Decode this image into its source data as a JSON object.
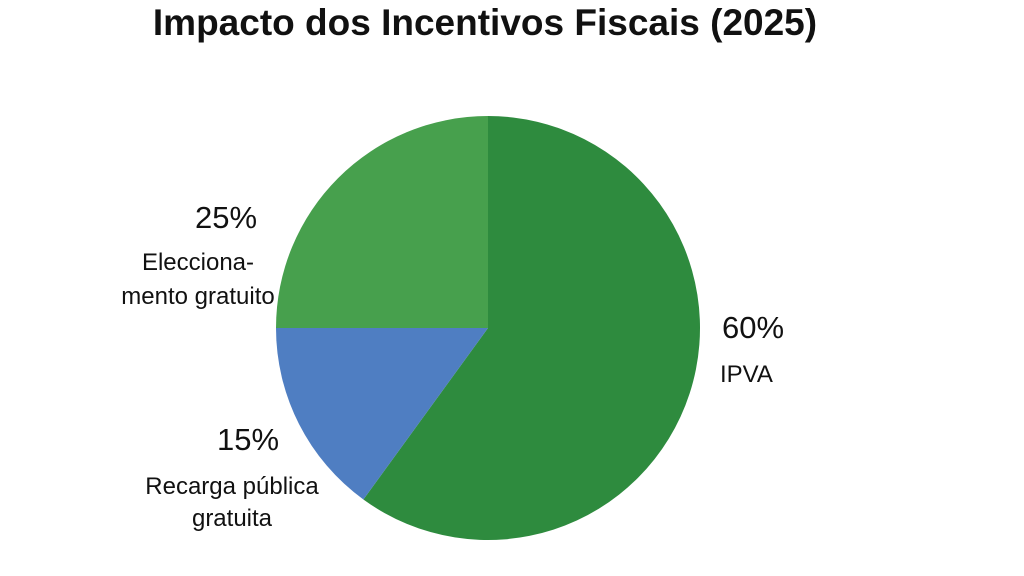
{
  "chart_data": {
    "type": "pie",
    "title": "Impacto dos Incentivos Fiscais (2025)",
    "slices": [
      {
        "value": 60,
        "percent_label": "60%",
        "name_lines": [
          "IPVA"
        ],
        "color": "#2e8b3e"
      },
      {
        "value": 15,
        "percent_label": "15%",
        "name_lines": [
          "Recarga pública",
          "gratuita"
        ],
        "color": "#4f7ec2"
      },
      {
        "value": 25,
        "percent_label": "25%",
        "name_lines": [
          "Elecciona-",
          "mento gratuito"
        ],
        "color": "#47a04d"
      }
    ],
    "start_angle_deg": 0,
    "direction": "clockwise"
  }
}
